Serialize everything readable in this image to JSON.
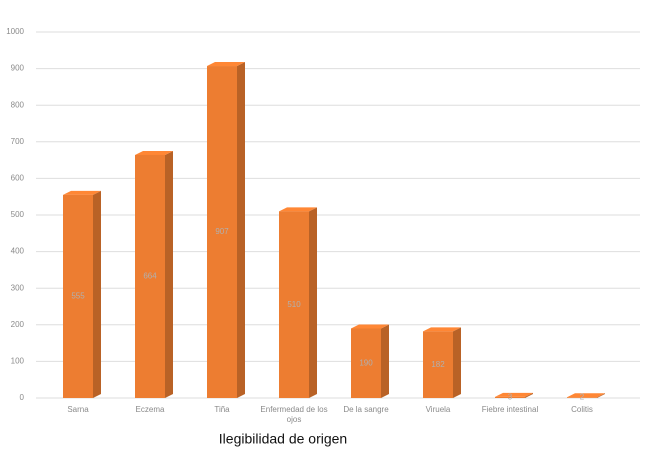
{
  "chart_data": {
    "type": "bar3d",
    "title": "Ilegibilidad de origen",
    "categories": [
      "Sarna",
      "Eczema",
      "Tiña",
      "Enfermedad de los ojos",
      "De la sangre",
      "Viruela",
      "Fiebre intestinal",
      "Colitis"
    ],
    "values": [
      555,
      664,
      907,
      510,
      190,
      182,
      3,
      2
    ],
    "color": "#ed7d31",
    "ylim": [
      0,
      1000
    ],
    "yticks": [
      0,
      100,
      200,
      300,
      400,
      500,
      600,
      700,
      800,
      900,
      1000
    ],
    "grid": true
  }
}
